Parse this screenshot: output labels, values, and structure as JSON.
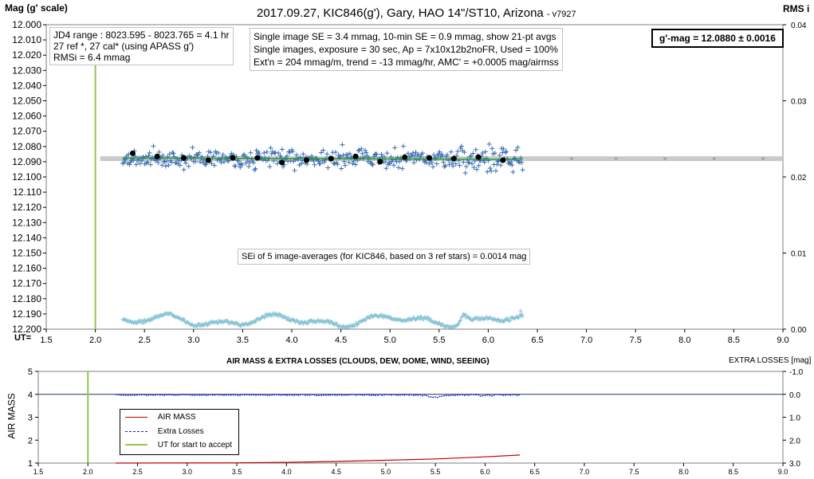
{
  "top_chart": {
    "title": "2017.09.27,  KIC846(g'),  Gary,  HAO  14\"/ST10,  Arizona",
    "title_suffix": "- v7927",
    "y_left_label": "Mag (g' scale)",
    "y_right_label": "RMS i",
    "x_prefix_label": "UT=",
    "info_box_1": {
      "line1": "JD4 range : 8023.595 - 8023.765 =  4.1  hr",
      "line2": "27 ref *, 27 cal* (using APASS g')",
      "line3": "RMSi = 6.4 mmag"
    },
    "info_box_2": {
      "line1": "Single image SE = 3.4 mmag, 10-min SE = 0.9 mmag, show 21-pt avgs",
      "line2": "Single images, exposure = 30 sec, Ap = 7x10x12b2noFR, Used = 100%",
      "line3": "Ext'n = 204 mmag/m, trend =  -13 mmag/hr, AMC' = +0.0005 mag/airmss"
    },
    "mag_box": "g'-mag = 12.0880 ± 0.0016",
    "sei_note": "SEi of 5 image-averages (for KIC846, based on 3 ref stars) = 0.0014 mag"
  },
  "bottom_chart": {
    "title": "AIR MASS & EXTRA LOSSES (CLOUDS, DEW, DOME, WIND, SEEING)",
    "y_left_label": "AIR MASS",
    "y_right_label": "EXTRA LOSSES [mag]",
    "legend": {
      "airmass": "AIR MASS",
      "extra": "Extra Losses",
      "ut_start": "UT for start to accept"
    }
  },
  "colors": {
    "single_points": "#3a6fb0",
    "averages": "#000000",
    "fit_line": "#2e9b3a",
    "mean_band": "#c4c4c4",
    "rms_points": "#86c3d6",
    "ut_line": "#92c752",
    "airmass_line": "#c00000",
    "extra_losses": "#1a20c8",
    "plot_border": "#7f7f7f"
  },
  "chart_data": [
    {
      "type": "scatter",
      "name": "KIC846 light curve",
      "xlim": [
        1.5,
        9.0
      ],
      "ylim": [
        12.2,
        12.0
      ],
      "x_ticks": [
        "1.5",
        "2.0",
        "2.5",
        "3.0",
        "3.5",
        "4.0",
        "4.5",
        "5.0",
        "5.5",
        "6.0",
        "6.5",
        "7.0",
        "7.5",
        "8.0",
        "8.5",
        "9.0"
      ],
      "y_ticks": [
        "12.000",
        "12.010",
        "12.020",
        "12.030",
        "12.040",
        "12.050",
        "12.060",
        "12.070",
        "12.080",
        "12.090",
        "12.100",
        "12.110",
        "12.120",
        "12.130",
        "12.140",
        "12.150",
        "12.160",
        "12.170",
        "12.180",
        "12.190",
        "12.200"
      ],
      "y2lim": [
        0.0,
        0.04
      ],
      "y2_ticks": [
        "0.00",
        "0.01",
        "0.02",
        "0.03",
        "0.04"
      ],
      "ut_start": 2.0,
      "mean_mag": 12.088,
      "data_range_ut": [
        2.28,
        6.35
      ],
      "trend_fit": {
        "x": [
          2.28,
          6.35
        ],
        "y": [
          12.0875,
          12.0885
        ]
      },
      "averages": {
        "x": [
          2.38,
          2.63,
          2.9,
          3.15,
          3.4,
          3.65,
          3.9,
          4.15,
          4.4,
          4.65,
          4.9,
          5.15,
          5.4,
          5.65,
          5.9,
          6.15
        ],
        "y": [
          12.0845,
          12.0865,
          12.0875,
          12.089,
          12.0875,
          12.0875,
          12.0905,
          12.089,
          12.088,
          12.0865,
          12.09,
          12.087,
          12.0875,
          12.088,
          12.087,
          12.089
        ]
      },
      "rms_scatter_level": [
        0.0005,
        0.0022
      ]
    },
    {
      "type": "line",
      "name": "Air mass and extra losses",
      "xlim": [
        1.5,
        9.0
      ],
      "x_ticks": [
        "1.5",
        "2.0",
        "2.5",
        "3.0",
        "3.5",
        "4.0",
        "4.5",
        "5.0",
        "5.5",
        "6.0",
        "6.5",
        "7.0",
        "7.5",
        "8.0",
        "8.5",
        "9.0"
      ],
      "ylim": [
        1,
        5
      ],
      "y_ticks": [
        "1",
        "2",
        "3",
        "4",
        "5"
      ],
      "y2lim": [
        -1.0,
        3.0
      ],
      "y2_ticks": [
        "-1.0",
        "0.0",
        "1.0",
        "2.0",
        "3.0"
      ],
      "ut_start": 2.0,
      "airmass": {
        "x": [
          2.28,
          3.5,
          4.0,
          4.5,
          5.0,
          5.5,
          6.0,
          6.35
        ],
        "y": [
          1.0,
          1.01,
          1.03,
          1.07,
          1.12,
          1.18,
          1.27,
          1.35
        ]
      },
      "extra_losses_baseline": 0.0,
      "extra_losses_range": [
        2.28,
        6.35
      ]
    }
  ]
}
